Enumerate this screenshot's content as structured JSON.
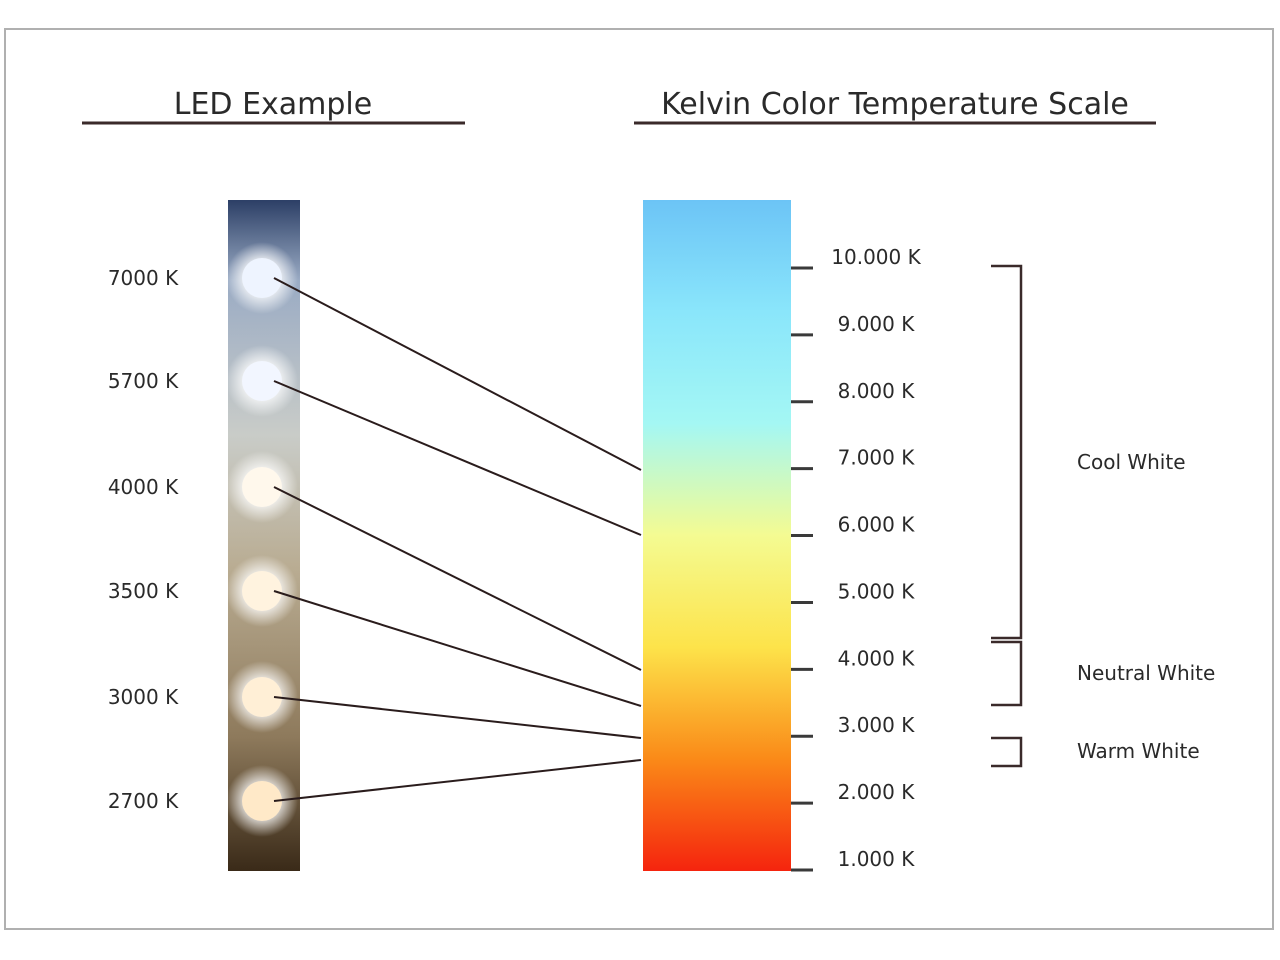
{
  "titles": {
    "left": "LED Example",
    "right": "Kelvin Color Temperature Scale"
  },
  "leds": [
    {
      "label": "7000 K",
      "kelvin": 7000,
      "color": "#eef4ff"
    },
    {
      "label": "5700 K",
      "kelvin": 5700,
      "color": "#f2f6ff"
    },
    {
      "label": "4000 K",
      "kelvin": 4000,
      "color": "#fff8ec"
    },
    {
      "label": "3500 K",
      "kelvin": 3500,
      "color": "#fff3df"
    },
    {
      "label": "3000 K",
      "kelvin": 3000,
      "color": "#ffefd6"
    },
    {
      "label": "2700 K",
      "kelvin": 2700,
      "color": "#ffe9c8"
    }
  ],
  "scale": {
    "ticks": [
      {
        "label": "10.000 K",
        "kelvin": 10000
      },
      {
        "label": "9.000 K",
        "kelvin": 9000
      },
      {
        "label": "8.000 K",
        "kelvin": 8000
      },
      {
        "label": "7.000 K",
        "kelvin": 7000
      },
      {
        "label": "6.000 K",
        "kelvin": 6000
      },
      {
        "label": "5.000 K",
        "kelvin": 5000
      },
      {
        "label": "4.000 K",
        "kelvin": 4000
      },
      {
        "label": "3.000 K",
        "kelvin": 3000
      },
      {
        "label": "2.000 K",
        "kelvin": 2000
      },
      {
        "label": "1.000 K",
        "kelvin": 1000
      }
    ],
    "gradient": [
      "#6cc4f6",
      "#8ae6fb",
      "#a4f7f4",
      "#f4fb92",
      "#fde34a",
      "#fa8a18",
      "#f5240e"
    ]
  },
  "categories": [
    {
      "label": "Cool White",
      "from_kelvin": 10000,
      "to_kelvin": 4500
    },
    {
      "label": "Neutral White",
      "from_kelvin": 4500,
      "to_kelvin": 3500
    },
    {
      "label": "Warm White",
      "from_kelvin": 3000,
      "to_kelvin": 2600
    }
  ]
}
